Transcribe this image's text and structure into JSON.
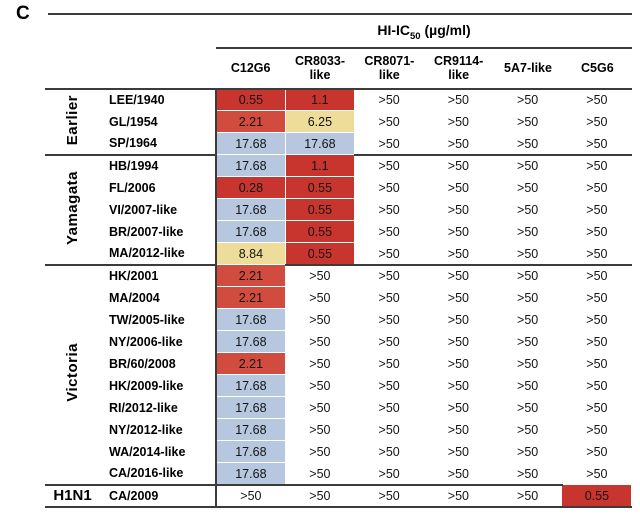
{
  "panel_label": "C",
  "table": {
    "title": {
      "prefix": "HI-IC",
      "subscript": "50",
      "suffix": " (µg/ml)"
    },
    "columns": [
      "C12G6",
      "CR8033-like",
      "CR8071-like",
      "CR9114-like",
      "5A7-like",
      "C5G6"
    ],
    "color_map": {
      "red": "#c8342e",
      "red_light": "#d14b3e",
      "yellow": "#eedc9a",
      "blue": "#b6c7df",
      "none": "#ffffff"
    },
    "groups": [
      {
        "label": "Earlier",
        "rows": [
          {
            "strain": "LEE/1940",
            "values": [
              "0.55",
              "1.1",
              ">50",
              ">50",
              ">50",
              ">50"
            ],
            "colors": [
              "red",
              "red",
              "none",
              "none",
              "none",
              "none"
            ]
          },
          {
            "strain": "GL/1954",
            "values": [
              "2.21",
              "6.25",
              ">50",
              ">50",
              ">50",
              ">50"
            ],
            "colors": [
              "red_light",
              "yellow",
              "none",
              "none",
              "none",
              "none"
            ]
          },
          {
            "strain": "SP/1964",
            "values": [
              "17.68",
              "17.68",
              ">50",
              ">50",
              ">50",
              ">50"
            ],
            "colors": [
              "blue",
              "blue",
              "none",
              "none",
              "none",
              "none"
            ]
          }
        ]
      },
      {
        "label": "Yamagata",
        "rows": [
          {
            "strain": "HB/1994",
            "values": [
              "17.68",
              "1.1",
              ">50",
              ">50",
              ">50",
              ">50"
            ],
            "colors": [
              "blue",
              "red",
              "none",
              "none",
              "none",
              "none"
            ]
          },
          {
            "strain": "FL/2006",
            "values": [
              "0.28",
              "0.55",
              ">50",
              ">50",
              ">50",
              ">50"
            ],
            "colors": [
              "red",
              "red",
              "none",
              "none",
              "none",
              "none"
            ]
          },
          {
            "strain": "VI/2007-like",
            "values": [
              "17.68",
              "0.55",
              ">50",
              ">50",
              ">50",
              ">50"
            ],
            "colors": [
              "blue",
              "red",
              "none",
              "none",
              "none",
              "none"
            ]
          },
          {
            "strain": "BR/2007-like",
            "values": [
              "17.68",
              "0.55",
              ">50",
              ">50",
              ">50",
              ">50"
            ],
            "colors": [
              "blue",
              "red",
              "none",
              "none",
              "none",
              "none"
            ]
          },
          {
            "strain": "MA/2012-like",
            "values": [
              "8.84",
              "0.55",
              ">50",
              ">50",
              ">50",
              ">50"
            ],
            "colors": [
              "yellow",
              "red",
              "none",
              "none",
              "none",
              "none"
            ]
          }
        ]
      },
      {
        "label": "Victoria",
        "rows": [
          {
            "strain": "HK/2001",
            "values": [
              "2.21",
              ">50",
              ">50",
              ">50",
              ">50",
              ">50"
            ],
            "colors": [
              "red_light",
              "none",
              "none",
              "none",
              "none",
              "none"
            ]
          },
          {
            "strain": "MA/2004",
            "values": [
              "2.21",
              ">50",
              ">50",
              ">50",
              ">50",
              ">50"
            ],
            "colors": [
              "red_light",
              "none",
              "none",
              "none",
              "none",
              "none"
            ]
          },
          {
            "strain": "TW/2005-like",
            "values": [
              "17.68",
              ">50",
              ">50",
              ">50",
              ">50",
              ">50"
            ],
            "colors": [
              "blue",
              "none",
              "none",
              "none",
              "none",
              "none"
            ]
          },
          {
            "strain": "NY/2006-like",
            "values": [
              "17.68",
              ">50",
              ">50",
              ">50",
              ">50",
              ">50"
            ],
            "colors": [
              "blue",
              "none",
              "none",
              "none",
              "none",
              "none"
            ]
          },
          {
            "strain": "BR/60/2008",
            "values": [
              "2.21",
              ">50",
              ">50",
              ">50",
              ">50",
              ">50"
            ],
            "colors": [
              "red_light",
              "none",
              "none",
              "none",
              "none",
              "none"
            ]
          },
          {
            "strain": "HK/2009-like",
            "values": [
              "17.68",
              ">50",
              ">50",
              ">50",
              ">50",
              ">50"
            ],
            "colors": [
              "blue",
              "none",
              "none",
              "none",
              "none",
              "none"
            ]
          },
          {
            "strain": "RI/2012-like",
            "values": [
              "17.68",
              ">50",
              ">50",
              ">50",
              ">50",
              ">50"
            ],
            "colors": [
              "blue",
              "none",
              "none",
              "none",
              "none",
              "none"
            ]
          },
          {
            "strain": "NY/2012-like",
            "values": [
              "17.68",
              ">50",
              ">50",
              ">50",
              ">50",
              ">50"
            ],
            "colors": [
              "blue",
              "none",
              "none",
              "none",
              "none",
              "none"
            ]
          },
          {
            "strain": "WA/2014-like",
            "values": [
              "17.68",
              ">50",
              ">50",
              ">50",
              ">50",
              ">50"
            ],
            "colors": [
              "blue",
              "none",
              "none",
              "none",
              "none",
              "none"
            ]
          },
          {
            "strain": "CA/2016-like",
            "values": [
              "17.68",
              ">50",
              ">50",
              ">50",
              ">50",
              ">50"
            ],
            "colors": [
              "blue",
              "none",
              "none",
              "none",
              "none",
              "none"
            ]
          }
        ]
      },
      {
        "label": "H1N1",
        "rows": [
          {
            "strain": "CA/2009",
            "values": [
              ">50",
              ">50",
              ">50",
              ">50",
              ">50",
              "0.55"
            ],
            "colors": [
              "none",
              "none",
              "none",
              "none",
              "none",
              "red"
            ]
          }
        ]
      }
    ]
  }
}
